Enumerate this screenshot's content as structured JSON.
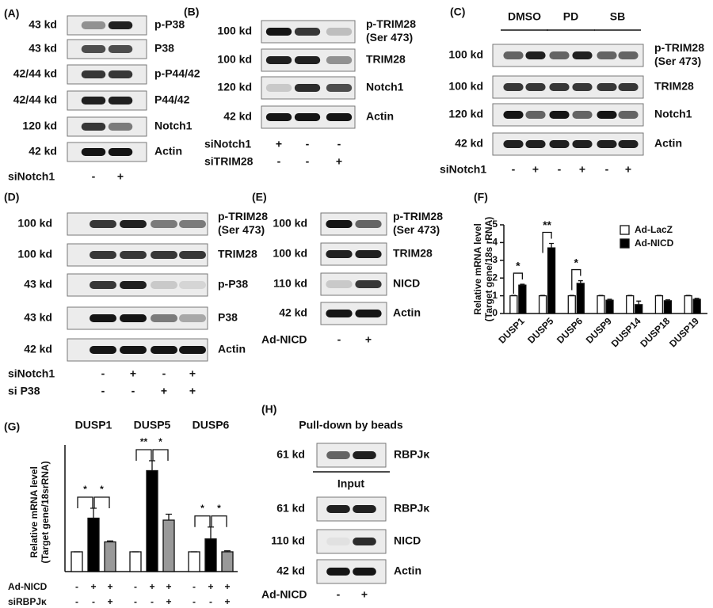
{
  "blots": [
    {
      "label": "(A)",
      "rows": [
        {
          "kd": "43 kd",
          "protein": [
            "p-P38"
          ]
        },
        {
          "kd": "43 kd",
          "protein": [
            "P38"
          ]
        },
        {
          "kd": "42/44 kd",
          "protein": [
            "p-P44/42"
          ]
        },
        {
          "kd": "42/44 kd",
          "protein": [
            "P44/42"
          ]
        },
        {
          "kd": "120 kd",
          "protein": [
            "Notch1"
          ]
        },
        {
          "kd": "42 kd",
          "protein": [
            "Actin"
          ]
        }
      ],
      "conditions": [
        {
          "name": "siNotch1",
          "marks": [
            "-",
            "+"
          ]
        }
      ]
    },
    {
      "label": "(B)",
      "rows": [
        {
          "kd": "100 kd",
          "protein": [
            "p-TRIM28",
            "(Ser 473)"
          ]
        },
        {
          "kd": "100 kd",
          "protein": [
            "TRIM28"
          ]
        },
        {
          "kd": "120 kd",
          "protein": [
            "Notch1"
          ]
        },
        {
          "kd": "42 kd",
          "protein": [
            "Actin"
          ]
        }
      ],
      "conditions": [
        {
          "name": "siNotch1",
          "marks": [
            "+",
            "-",
            "-"
          ]
        },
        {
          "name": "siTRIM28",
          "marks": [
            "-",
            "-",
            "+"
          ]
        }
      ]
    },
    {
      "label": "(C)",
      "groups": [
        "DMSO",
        "PD",
        "SB"
      ],
      "rows": [
        {
          "kd": "100 kd",
          "protein": [
            "p-TRIM28",
            "(Ser 473)"
          ]
        },
        {
          "kd": "100 kd",
          "protein": [
            "TRIM28"
          ]
        },
        {
          "kd": "120 kd",
          "protein": [
            "Notch1"
          ]
        },
        {
          "kd": "42 kd",
          "protein": [
            "Actin"
          ]
        }
      ],
      "conditions": [
        {
          "name": "siNotch1",
          "marks": [
            "-",
            "+",
            "-",
            "+",
            "-",
            "+"
          ]
        }
      ]
    },
    {
      "label": "(D)",
      "rows": [
        {
          "kd": "100 kd",
          "protein": [
            "p-TRIM28",
            "(Ser 473)"
          ]
        },
        {
          "kd": "100 kd",
          "protein": [
            "TRIM28"
          ]
        },
        {
          "kd": "43 kd",
          "protein": [
            "p-P38"
          ]
        },
        {
          "kd": "43 kd",
          "protein": [
            "P38"
          ]
        },
        {
          "kd": "42 kd",
          "protein": [
            "Actin"
          ]
        }
      ],
      "conditions": [
        {
          "name": "siNotch1",
          "marks": [
            "-",
            "+",
            "-",
            "+"
          ]
        },
        {
          "name": "si P38",
          "marks": [
            "-",
            "-",
            "+",
            "+"
          ]
        }
      ]
    },
    {
      "label": "(E)",
      "rows": [
        {
          "kd": "100 kd",
          "protein": [
            "p-TRIM28",
            "(Ser 473)"
          ]
        },
        {
          "kd": "100 kd",
          "protein": [
            "TRIM28"
          ]
        },
        {
          "kd": "110 kd",
          "protein": [
            "NICD"
          ]
        },
        {
          "kd": "42 kd",
          "protein": [
            "Actin"
          ]
        }
      ],
      "conditions": [
        {
          "name": "Ad-NICD",
          "marks": [
            "-",
            "+"
          ]
        }
      ]
    },
    {
      "label": "(H)",
      "title": "Pull-down by beads",
      "rows": [
        {
          "kd": "61 kd",
          "protein": [
            "RBPJκ"
          ]
        }
      ],
      "subtitle": "Input",
      "input_rows": [
        {
          "kd": "61 kd",
          "protein": [
            "RBPJκ"
          ]
        },
        {
          "kd": "110 kd",
          "protein": [
            "NICD"
          ]
        },
        {
          "kd": "42 kd",
          "protein": [
            "Actin"
          ]
        }
      ],
      "conditions": [
        {
          "name": "Ad-NICD",
          "marks": [
            "-",
            "+"
          ]
        }
      ]
    }
  ],
  "chart_data": [
    {
      "type": "bar",
      "label": "(F)",
      "y_label": [
        "Relative mRNA level",
        "(Target gene/18s rRNA)"
      ],
      "categories": [
        "DUSP1",
        "DUSP5",
        "DUSP6",
        "DUSP9",
        "DUSP14",
        "DUSP18",
        "DUSP19"
      ],
      "series": [
        {
          "name": "Ad-LacZ",
          "color": "#ffffff",
          "values": [
            1,
            1,
            1,
            1,
            1,
            1,
            1
          ],
          "errors": [
            0.02,
            0.02,
            0.02,
            0.02,
            0.02,
            0.02,
            0.02
          ]
        },
        {
          "name": "Ad-NICD",
          "color": "#000000",
          "values": [
            1.6,
            3.7,
            1.7,
            0.75,
            0.5,
            0.72,
            0.8
          ],
          "errors": [
            0.05,
            0.25,
            0.15,
            0.05,
            0.2,
            0.05,
            0.05
          ]
        }
      ],
      "ylim": [
        0,
        5
      ],
      "yticks": [
        0,
        1,
        2,
        3,
        4,
        5
      ],
      "legend": "upper right",
      "significance": [
        "*",
        "**",
        "*",
        null,
        null,
        null,
        null
      ]
    },
    {
      "type": "grouped-bar",
      "label": "(G)",
      "y_label": [
        "Relative mRNA level",
        "(Target gene/18srRNA)"
      ],
      "groups": [
        "DUSP1",
        "DUSP5",
        "DUSP6"
      ],
      "values": [
        [
          1,
          2.7,
          1.5
        ],
        [
          1,
          5.1,
          2.6
        ],
        [
          1,
          1.65,
          1.0
        ]
      ],
      "errors": [
        [
          0,
          0.5,
          0.05
        ],
        [
          0,
          0.5,
          0.3
        ],
        [
          0,
          0.6,
          0.05
        ]
      ],
      "colors": [
        "#ffffff",
        "#000000",
        "#999999"
      ],
      "ylim": [
        0,
        6
      ],
      "significance": [
        [
          "*",
          "*"
        ],
        [
          "**",
          "*"
        ],
        [
          "*",
          "*"
        ]
      ],
      "conditions": [
        {
          "name": "Ad-NICD",
          "marks": [
            "-",
            "+",
            "+",
            "-",
            "+",
            "+",
            "-",
            "+",
            "+"
          ]
        },
        {
          "name": "siRBPJκ",
          "marks": [
            "-",
            "-",
            "+",
            "-",
            "-",
            "+",
            "-",
            "-",
            "+"
          ]
        }
      ]
    }
  ]
}
